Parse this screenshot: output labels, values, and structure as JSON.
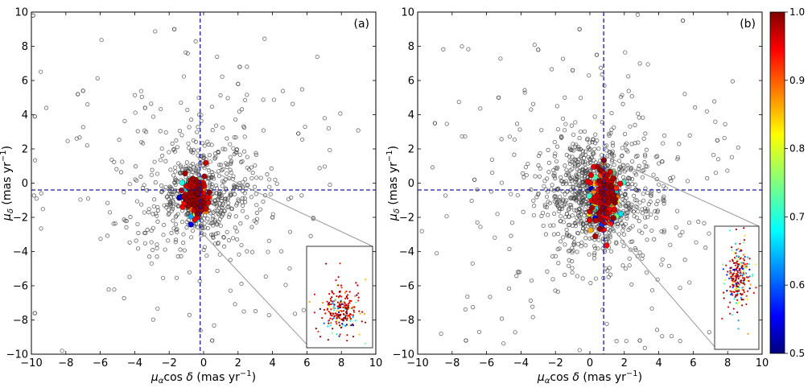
{
  "chart_data": [
    {
      "type": "scatter",
      "panel_label": "(a)",
      "xlabel": "μαcos δ (mas yr−1)",
      "ylabel": "μδ (mas yr−1)",
      "xlim": [
        -10,
        10
      ],
      "ylim": [
        -10,
        10
      ],
      "xticks": [
        -10,
        -8,
        -6,
        -4,
        -2,
        0,
        2,
        4,
        6,
        8,
        10
      ],
      "yticks": [
        -10,
        -8,
        -6,
        -4,
        -2,
        0,
        2,
        4,
        6,
        8,
        10
      ],
      "reference_lines": {
        "x": -0.2,
        "y": -0.4,
        "style": "dashed",
        "color": "#1a1aa8"
      },
      "field_stars": {
        "marker": "open-circle",
        "color": "#444444",
        "count": 700,
        "center": [
          -0.2,
          -0.6
        ],
        "spread": [
          2.2,
          2.2
        ],
        "examples": [
          [
            -9.9,
            9.8
          ],
          [
            -1.7,
            9.0
          ],
          [
            -7.0,
            5.4
          ],
          [
            -7.3,
            5.2
          ],
          [
            -3.4,
            4.4
          ],
          [
            2.1,
            6.8
          ],
          [
            2.0,
            5.8
          ],
          [
            -9.8,
            3.9
          ],
          [
            0.5,
            -9.2
          ],
          [
            -9.8,
            -7.6
          ],
          [
            5.5,
            2.9
          ],
          [
            4.0,
            -2.0
          ]
        ]
      },
      "members": {
        "center": [
          -0.45,
          -0.7
        ],
        "spread": [
          0.35,
          0.55
        ],
        "count": 220
      },
      "zoom_inset": {
        "source_center": [
          -0.3,
          -0.8
        ],
        "x_range": [
          6.0,
          9.3
        ],
        "y_range": [
          -9.1,
          -3.8
        ],
        "center": [
          7.7,
          -7.1
        ],
        "spread": [
          0.45,
          0.55
        ]
      }
    },
    {
      "type": "scatter",
      "panel_label": "(b)",
      "xlabel": "μαcos δ (mas yr−1)",
      "ylabel": "μδ (mas yr−1)",
      "xlim": [
        -10,
        10
      ],
      "ylim": [
        -10,
        10
      ],
      "xticks": [
        -10,
        -8,
        -6,
        -4,
        -2,
        0,
        2,
        4,
        6,
        8,
        10
      ],
      "yticks": [
        -10,
        -8,
        -6,
        -4,
        -2,
        0,
        2,
        4,
        6,
        8,
        10
      ],
      "reference_lines": {
        "x": 0.8,
        "y": -0.4,
        "style": "dashed",
        "color": "#1a1aa8"
      },
      "field_stars": {
        "marker": "open-circle",
        "color": "#444444",
        "count": 1100,
        "center": [
          0.3,
          -0.7
        ],
        "spread": [
          1.9,
          2.0
        ],
        "examples": [
          [
            -0.6,
            9.0
          ],
          [
            5.4,
            9.5
          ],
          [
            -3.0,
            7.8
          ],
          [
            0.4,
            7.5
          ],
          [
            -1.0,
            6.6
          ],
          [
            -5.3,
            5.0
          ],
          [
            -9.0,
            3.5
          ],
          [
            -6.7,
            0.2
          ],
          [
            -7.2,
            -9.2
          ],
          [
            7.4,
            2.5
          ],
          [
            2.9,
            -9.2
          ],
          [
            -4.1,
            -5.2
          ]
        ]
      },
      "members": {
        "center": [
          0.9,
          -0.9
        ],
        "spread": [
          0.35,
          0.8
        ],
        "count": 200
      },
      "zoom_inset": {
        "source_center": [
          0.9,
          -0.3
        ],
        "x_range": [
          7.2,
          9.8
        ],
        "y_range": [
          -9.4,
          -2.4
        ],
        "center": [
          8.6,
          -5.3
        ],
        "spread": [
          0.35,
          0.75
        ]
      }
    }
  ],
  "colorbar": {
    "min": 0.5,
    "max": 1.0,
    "ticks": [
      "0.5",
      "0.6",
      "0.7",
      "0.8",
      "0.9",
      "1.0"
    ],
    "colormap": "jet"
  }
}
